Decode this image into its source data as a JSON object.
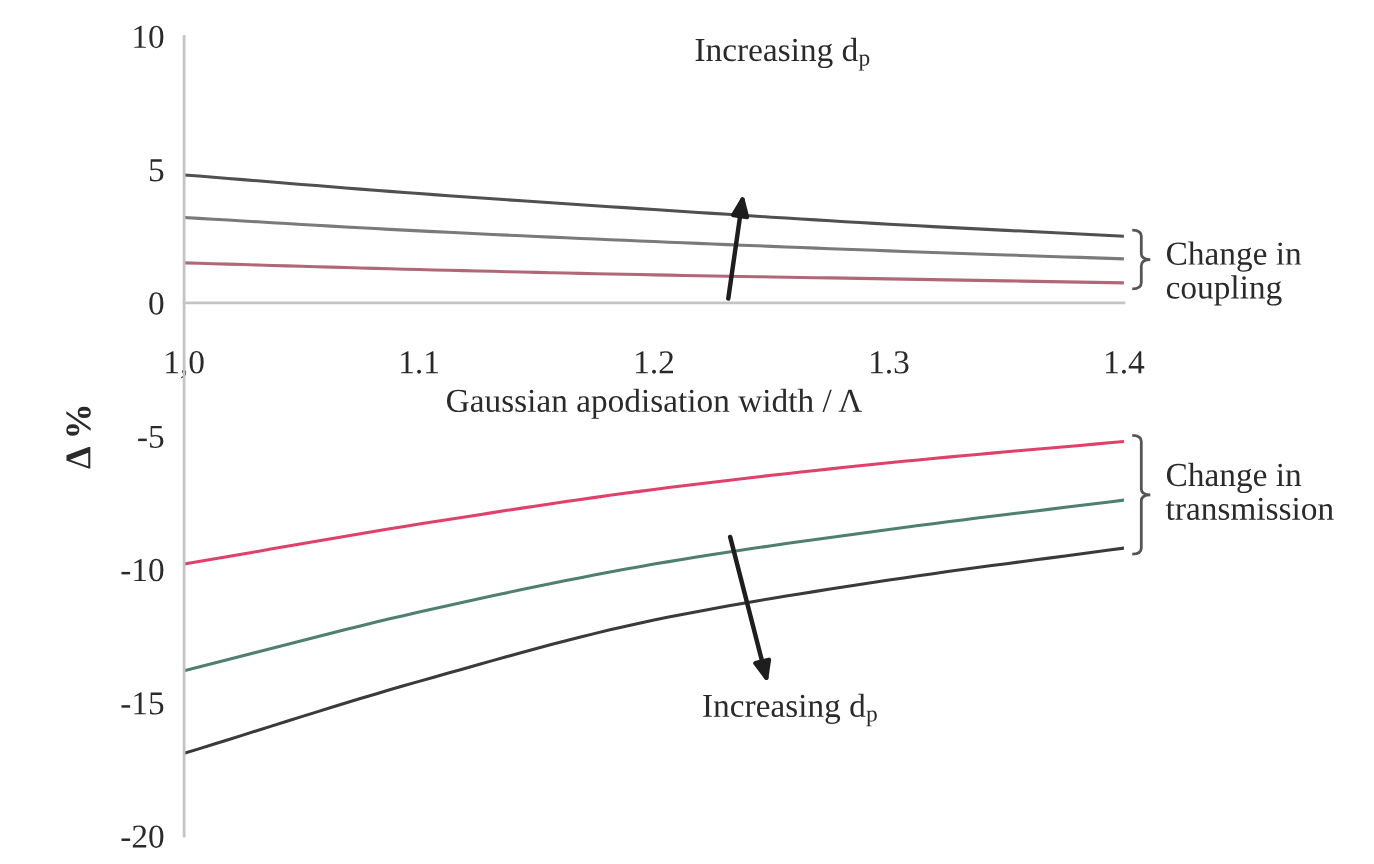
{
  "chart_data": {
    "type": "line",
    "xlabel": "Gaussian apodisation width / Λ",
    "ylabel": "Δ %",
    "x": [
      1.0,
      1.1,
      1.2,
      1.3,
      1.4
    ],
    "series": [
      {
        "color": "#505050",
        "values": [
          4.8,
          4.1,
          3.5,
          2.95,
          2.5
        ]
      },
      {
        "color": "#7a7a7a",
        "values": [
          3.2,
          2.7,
          2.3,
          1.95,
          1.65
        ]
      },
      {
        "color": "#b06878",
        "values": [
          1.5,
          1.25,
          1.05,
          0.9,
          0.75
        ]
      },
      {
        "color": "#e0406a",
        "values": [
          -9.8,
          -8.3,
          -7.0,
          -6.0,
          -5.2
        ]
      },
      {
        "color": "#4f7f6f",
        "values": [
          -13.8,
          -11.6,
          -9.8,
          -8.5,
          -7.4
        ]
      },
      {
        "color": "#3a3a3a",
        "values": [
          -16.9,
          -14.2,
          -11.9,
          -10.4,
          -9.2
        ]
      }
    ],
    "xlim": [
      1.0,
      1.4
    ],
    "xticks": [
      {
        "value": 1.0,
        "label": "1,0"
      },
      1.1,
      1.2,
      1.3,
      1.4
    ],
    "ylim": [
      -20,
      10
    ],
    "yticks": [
      -20,
      -15,
      -10,
      -5,
      0,
      5,
      10
    ],
    "annotations": [
      "Increasing d$_{p}$",
      {
        "text": "Change in\ncoupling",
        "x": 1.4,
        "y": 1.1
      },
      {
        "text": "Change in\ntransmission",
        "x": 1.4,
        "y": -7.2
      },
      "Increasing d$_{p}$"
    ],
    "grid": false,
    "marker": "none",
    "line_style": "solid"
  }
}
